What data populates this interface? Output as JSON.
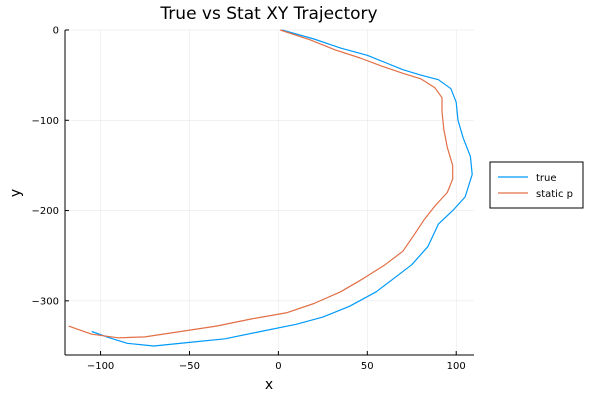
{
  "chart_data": {
    "type": "line",
    "title": "True vs Stat XY Trajectory",
    "xlabel": "x",
    "ylabel": "y",
    "xlim": [
      -120,
      110
    ],
    "ylim": [
      -360,
      0
    ],
    "xticks": [
      -100,
      -50,
      0,
      50,
      100
    ],
    "yticks": [
      0,
      -100,
      -200,
      -300
    ],
    "xtick_labels": [
      "−100",
      "−50",
      "0",
      "50",
      "100"
    ],
    "ytick_labels": [
      "0",
      "−100",
      "−200",
      "−300"
    ],
    "grid": true,
    "legend_position": "outside-right",
    "series": [
      {
        "name": "true",
        "color": "#009AF9",
        "points": [
          [
            2,
            0
          ],
          [
            20,
            -10
          ],
          [
            35,
            -20
          ],
          [
            50,
            -28
          ],
          [
            60,
            -36
          ],
          [
            70,
            -44
          ],
          [
            80,
            -50
          ],
          [
            90,
            -55
          ],
          [
            97,
            -65
          ],
          [
            100,
            -80
          ],
          [
            101,
            -100
          ],
          [
            104,
            -120
          ],
          [
            108,
            -140
          ],
          [
            109,
            -160
          ],
          [
            105,
            -185
          ],
          [
            98,
            -200
          ],
          [
            90,
            -215
          ],
          [
            84,
            -240
          ],
          [
            75,
            -260
          ],
          [
            65,
            -275
          ],
          [
            55,
            -290
          ],
          [
            40,
            -306
          ],
          [
            25,
            -318
          ],
          [
            10,
            -326
          ],
          [
            -10,
            -334
          ],
          [
            -30,
            -342
          ],
          [
            -50,
            -346
          ],
          [
            -70,
            -350
          ],
          [
            -85,
            -347
          ],
          [
            -95,
            -341
          ],
          [
            -105,
            -334
          ]
        ]
      },
      {
        "name": "static p",
        "color": "#E26F46",
        "points": [
          [
            1,
            0
          ],
          [
            18,
            -11
          ],
          [
            32,
            -22
          ],
          [
            46,
            -31
          ],
          [
            58,
            -40
          ],
          [
            70,
            -48
          ],
          [
            80,
            -54
          ],
          [
            88,
            -64
          ],
          [
            92,
            -75
          ],
          [
            92,
            -90
          ],
          [
            93,
            -110
          ],
          [
            95,
            -130
          ],
          [
            98,
            -150
          ],
          [
            98,
            -165
          ],
          [
            95,
            -180
          ],
          [
            88,
            -195
          ],
          [
            82,
            -210
          ],
          [
            77,
            -225
          ],
          [
            70,
            -245
          ],
          [
            60,
            -260
          ],
          [
            48,
            -275
          ],
          [
            35,
            -290
          ],
          [
            20,
            -303
          ],
          [
            5,
            -313
          ],
          [
            -15,
            -320
          ],
          [
            -35,
            -328
          ],
          [
            -55,
            -334
          ],
          [
            -75,
            -340
          ],
          [
            -90,
            -341
          ],
          [
            -105,
            -337
          ],
          [
            -118,
            -328
          ]
        ]
      }
    ]
  }
}
